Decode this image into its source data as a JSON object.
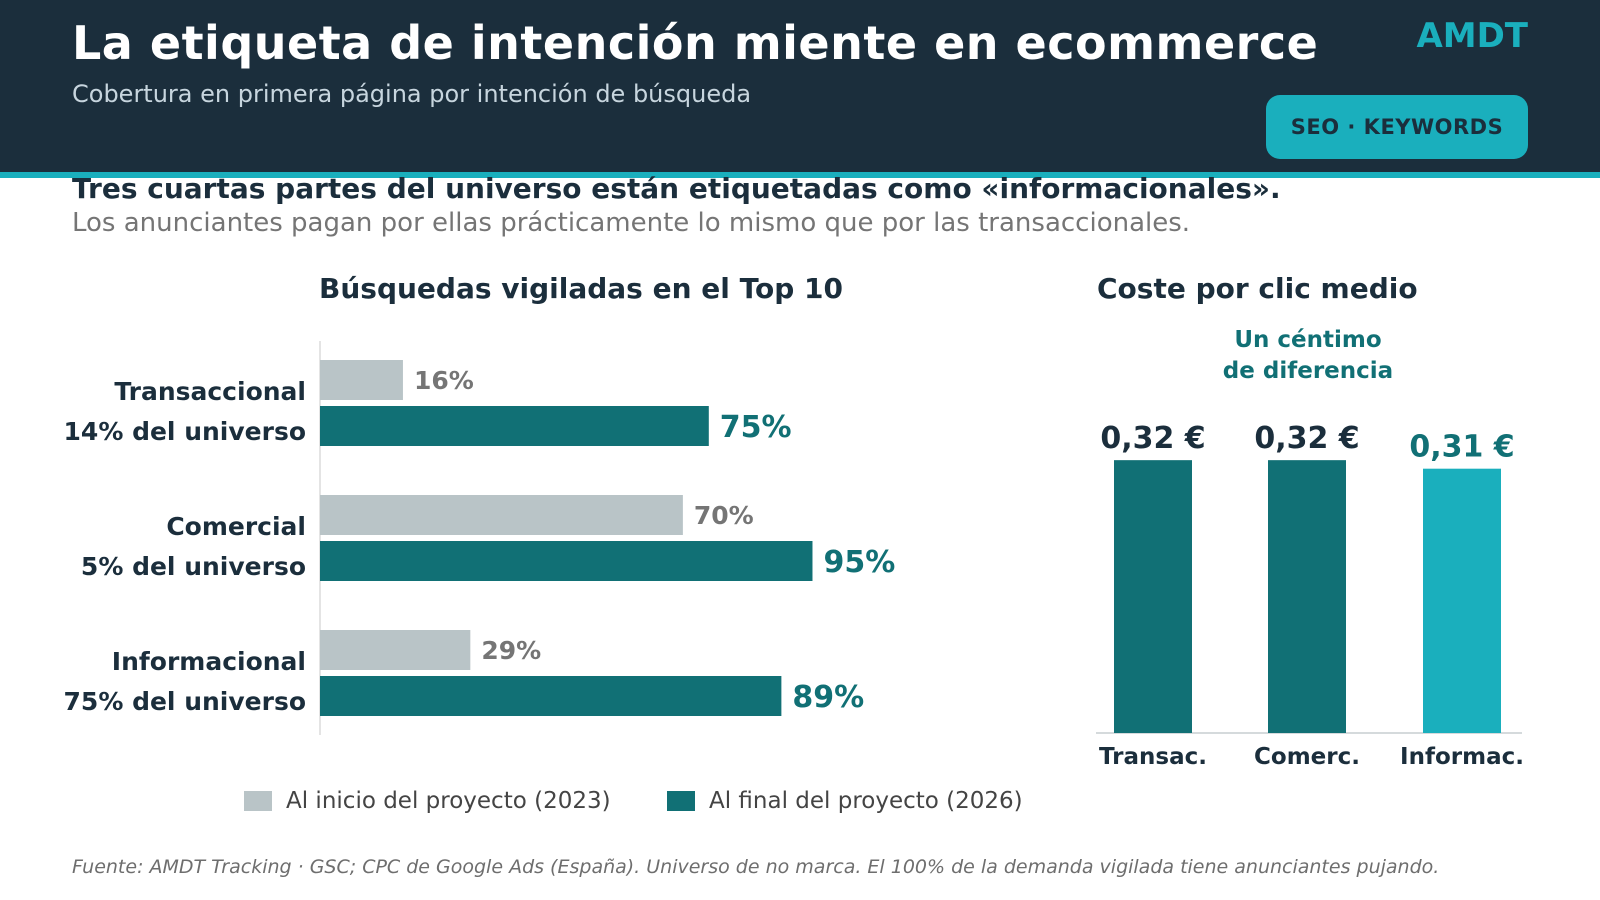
{
  "header": {
    "title": "La etiqueta de intención miente en ecommerce",
    "subtitle": "Cobertura en primera página por intención de búsqueda",
    "brand": "AMDT",
    "badge": "SEO · KEYWORDS"
  },
  "headline": "Tres cuartas partes del universo están etiquetadas como «informacionales».",
  "subheadline": "Los anunciantes pagan por ellas prácticamente lo mismo que por las transaccionales.",
  "legend": {
    "start": "Al inicio del proyecto (2023)",
    "end": "Al final del proyecto (2026)"
  },
  "footnote": "Fuente: AMDT Tracking · GSC; CPC de Google Ads (España). Universo de no marca. El 100% de la demanda vigilada tiene anunciantes pujando.",
  "colors": {
    "navy": "#1b2e3c",
    "teal_dark": "#117075",
    "teal_light": "#1aafbd",
    "grey_bar": "#b9c4c7",
    "grey_text": "#757575"
  },
  "chart_data": [
    {
      "type": "bar",
      "orientation": "horizontal",
      "title": "Búsquedas vigiladas en el Top 10",
      "categories": [
        {
          "name": "Transaccional",
          "sub": "14% del universo"
        },
        {
          "name": "Comercial",
          "sub": "5% del universo"
        },
        {
          "name": "Informacional",
          "sub": "75% del universo"
        }
      ],
      "series": [
        {
          "name": "Al inicio del proyecto (2023)",
          "values": [
            16,
            70,
            29
          ],
          "labels": [
            "16%",
            "70%",
            "29%"
          ],
          "color": "#b9c4c7",
          "label_color": "#757575"
        },
        {
          "name": "Al final del proyecto (2026)",
          "values": [
            75,
            95,
            89
          ],
          "labels": [
            "75%",
            "95%",
            "89%"
          ],
          "color": "#117075",
          "label_color": "#117075"
        }
      ],
      "xlim": [
        0,
        100
      ],
      "grid": false,
      "legend": "bottom"
    },
    {
      "type": "bar",
      "title": "Coste por clic medio",
      "annotation": "Un céntimo de diferencia",
      "annotation_lines": [
        "Un céntimo",
        "de diferencia"
      ],
      "categories": [
        "Transac.",
        "Comerc.",
        "Informac."
      ],
      "values": [
        0.32,
        0.32,
        0.31
      ],
      "labels": [
        "0,32 €",
        "0,32 €",
        "0,31 €"
      ],
      "colors": [
        "#117075",
        "#117075",
        "#1aafbd"
      ],
      "label_colors": [
        "#1b2e3c",
        "#1b2e3c",
        "#117075"
      ],
      "ylim": [
        0,
        0.3413
      ],
      "grid": false
    }
  ]
}
